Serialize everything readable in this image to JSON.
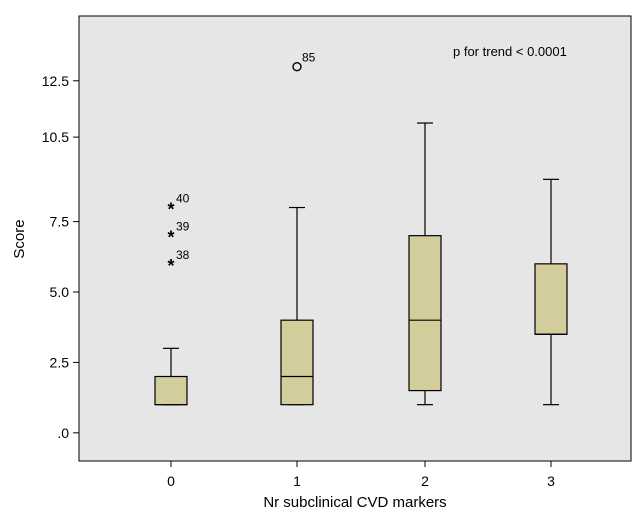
{
  "chart_data": {
    "type": "boxplot",
    "xlabel": "Nr subclinical CVD markers",
    "ylabel": "Score",
    "annotation": "p for trend < 0.0001",
    "ylim": [
      -1,
      14.8
    ],
    "yticks": [
      0,
      2.5,
      5.0,
      7.5,
      10.5,
      12.5
    ],
    "ytick_labels": [
      ".0",
      "2.5",
      "5.0",
      "7.5",
      "10.5",
      "12.5"
    ],
    "categories": [
      "0",
      "1",
      "2",
      "3"
    ],
    "boxes": [
      {
        "category": "0",
        "whisker_low": 1,
        "q1": 1,
        "median": 1,
        "q3": 2,
        "whisker_high": 3,
        "outliers": [
          {
            "value": 6,
            "marker": "star",
            "label": "38"
          },
          {
            "value": 7,
            "marker": "star",
            "label": "39"
          },
          {
            "value": 8,
            "marker": "star",
            "label": "40"
          }
        ]
      },
      {
        "category": "1",
        "whisker_low": 1,
        "q1": 1,
        "median": 2,
        "q3": 4,
        "whisker_high": 8,
        "outliers": [
          {
            "value": 13,
            "marker": "circle",
            "label": "85"
          }
        ]
      },
      {
        "category": "2",
        "whisker_low": 1,
        "q1": 1.5,
        "median": 4,
        "q3": 7,
        "whisker_high": 11,
        "outliers": []
      },
      {
        "category": "3",
        "whisker_low": 1,
        "q1": 3.5,
        "median": 3.5,
        "q3": 6,
        "whisker_high": 9,
        "outliers": []
      }
    ],
    "colors": {
      "box_fill": "#d3cd9c",
      "background": "#e6e6e6",
      "stroke": "#000000"
    },
    "grid": false
  }
}
